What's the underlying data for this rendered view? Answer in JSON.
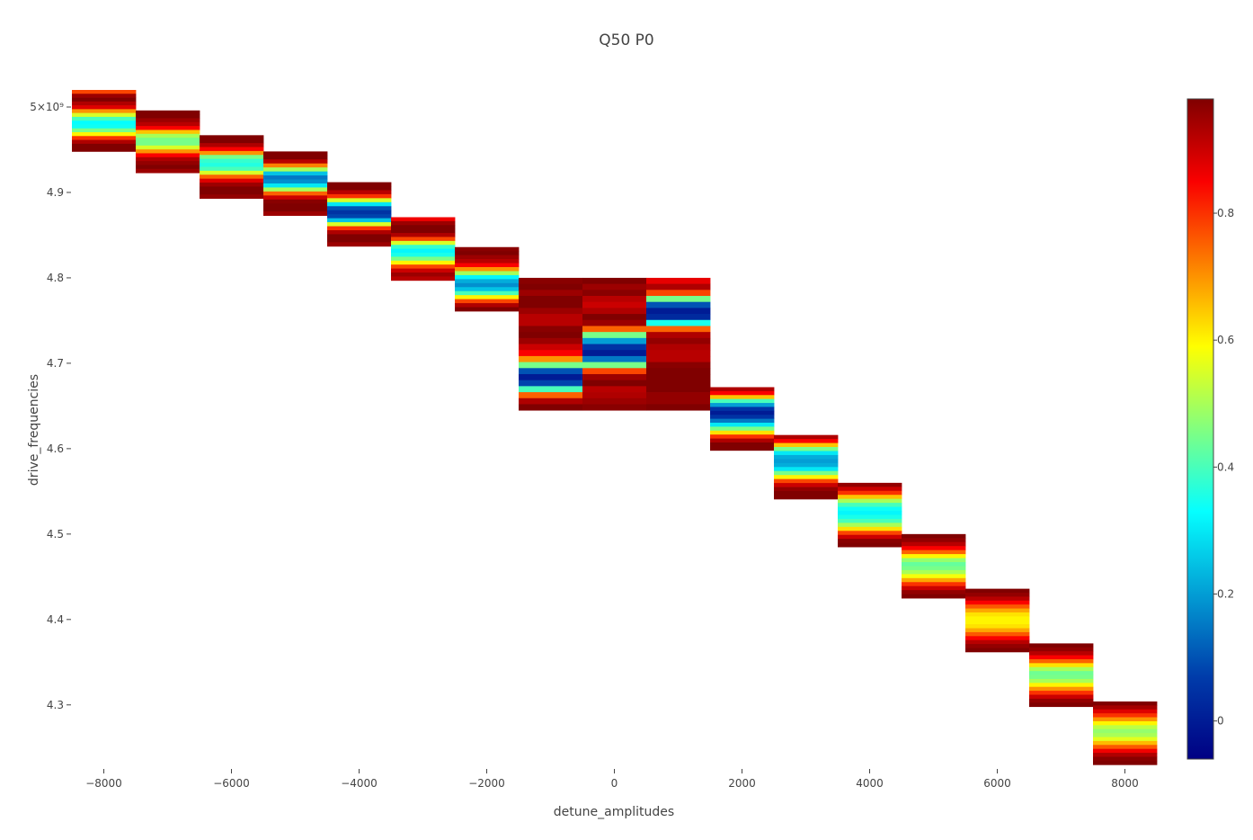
{
  "chart_data": {
    "type": "heatmap",
    "title": "Q50 P0",
    "xlabel": "detune_amplitudes",
    "ylabel": "drive_frequencies",
    "xlim": [
      -8500,
      8500
    ],
    "ylim": [
      4.225,
      5.02
    ],
    "xticks": [
      -8000,
      -6000,
      -4000,
      -2000,
      0,
      2000,
      4000,
      6000,
      8000
    ],
    "xtick_labels": [
      "−8000",
      "−6000",
      "−4000",
      "−2000",
      "0",
      "2000",
      "4000",
      "6000",
      "8000"
    ],
    "yticks": [
      4.3,
      4.4,
      4.5,
      4.6,
      4.7,
      4.8,
      4.9,
      5.0
    ],
    "ytick_labels": [
      "4.3",
      "4.4",
      "4.5",
      "4.6",
      "4.7",
      "4.8",
      "4.9",
      "5×10⁹"
    ],
    "colorscale": "Jet",
    "zlim": [
      -0.06,
      0.98
    ],
    "colorbar_ticks": [
      0,
      0.2,
      0.4,
      0.6,
      0.8
    ],
    "colorbar_tick_labels": [
      "0",
      "0.2",
      "0.4",
      "0.6",
      "0.8"
    ],
    "grid": false,
    "columns": [
      {
        "x": -8000,
        "y_min": 4.948,
        "y_max": 5.02,
        "values": [
          0.78,
          0.95,
          0.98,
          0.93,
          0.88,
          0.7,
          0.55,
          0.4,
          0.33,
          0.34,
          0.45,
          0.6,
          0.8,
          0.93,
          0.98,
          0.98
        ]
      },
      {
        "x": -7000,
        "y_min": 4.923,
        "y_max": 4.996,
        "values": [
          0.98,
          0.98,
          0.95,
          0.92,
          0.85,
          0.65,
          0.5,
          0.45,
          0.45,
          0.55,
          0.7,
          0.85,
          0.93,
          0.96,
          0.98,
          0.95
        ]
      },
      {
        "x": -6000,
        "y_min": 4.893,
        "y_max": 4.967,
        "values": [
          0.98,
          0.98,
          0.93,
          0.85,
          0.7,
          0.45,
          0.38,
          0.36,
          0.4,
          0.55,
          0.75,
          0.88,
          0.95,
          0.98,
          0.98,
          0.96
        ]
      },
      {
        "x": -5000,
        "y_min": 4.873,
        "y_max": 4.948,
        "values": [
          0.98,
          0.98,
          0.92,
          0.72,
          0.5,
          0.25,
          0.15,
          0.18,
          0.3,
          0.5,
          0.75,
          0.9,
          0.97,
          0.98,
          0.98,
          0.95
        ]
      },
      {
        "x": -4000,
        "y_min": 4.837,
        "y_max": 4.912,
        "values": [
          0.98,
          0.98,
          0.92,
          0.8,
          0.55,
          0.3,
          0.1,
          0.05,
          0.08,
          0.25,
          0.55,
          0.8,
          0.93,
          0.98,
          0.98,
          0.95
        ]
      },
      {
        "x": -3000,
        "y_min": 4.797,
        "y_max": 4.871,
        "values": [
          0.86,
          0.95,
          0.98,
          0.98,
          0.93,
          0.78,
          0.55,
          0.38,
          0.32,
          0.35,
          0.45,
          0.6,
          0.78,
          0.9,
          0.95,
          0.92
        ]
      },
      {
        "x": -2000,
        "y_min": 4.761,
        "y_max": 4.836,
        "values": [
          0.97,
          0.98,
          0.95,
          0.92,
          0.85,
          0.7,
          0.5,
          0.32,
          0.22,
          0.18,
          0.25,
          0.4,
          0.6,
          0.78,
          0.93,
          0.98
        ]
      },
      {
        "x": -1000,
        "y_min": 4.645,
        "y_max": 4.8,
        "values": [
          0.97,
          0.98,
          0.95,
          0.98,
          0.98,
          0.95,
          0.92,
          0.92,
          0.97,
          0.98,
          0.95,
          0.9,
          0.85,
          0.7,
          0.45,
          0.1,
          0.0,
          0.08,
          0.4,
          0.75,
          0.93,
          0.98
        ]
      },
      {
        "x": 0,
        "y_min": 4.645,
        "y_max": 4.8,
        "values": [
          0.98,
          0.95,
          0.97,
          0.92,
          0.9,
          0.93,
          0.98,
          0.95,
          0.75,
          0.45,
          0.2,
          0.05,
          0.0,
          0.15,
          0.45,
          0.78,
          0.95,
          0.98,
          0.92,
          0.93,
          0.95,
          0.97
        ]
      },
      {
        "x": 1000,
        "y_min": 4.645,
        "y_max": 4.8,
        "values": [
          0.87,
          0.93,
          0.78,
          0.45,
          0.1,
          0.0,
          0.03,
          0.35,
          0.75,
          0.93,
          0.96,
          0.93,
          0.92,
          0.92,
          0.97,
          0.98,
          0.98,
          0.98,
          0.98,
          0.96,
          0.96,
          0.98
        ]
      },
      {
        "x": 2000,
        "y_min": 4.598,
        "y_max": 4.672,
        "values": [
          0.93,
          0.85,
          0.65,
          0.4,
          0.2,
          0.05,
          0.0,
          0.05,
          0.15,
          0.3,
          0.45,
          0.62,
          0.8,
          0.93,
          0.98,
          0.98
        ]
      },
      {
        "x": 3000,
        "y_min": 4.541,
        "y_max": 4.616,
        "values": [
          0.93,
          0.85,
          0.65,
          0.45,
          0.3,
          0.22,
          0.2,
          0.22,
          0.3,
          0.45,
          0.6,
          0.78,
          0.9,
          0.96,
          0.98,
          0.98
        ]
      },
      {
        "x": 4000,
        "y_min": 4.485,
        "y_max": 4.56,
        "values": [
          0.96,
          0.9,
          0.8,
          0.65,
          0.5,
          0.4,
          0.34,
          0.32,
          0.35,
          0.4,
          0.5,
          0.62,
          0.78,
          0.9,
          0.97,
          0.98
        ]
      },
      {
        "x": 5000,
        "y_min": 4.425,
        "y_max": 4.5,
        "values": [
          0.98,
          0.96,
          0.92,
          0.85,
          0.75,
          0.6,
          0.48,
          0.43,
          0.45,
          0.5,
          0.58,
          0.68,
          0.8,
          0.9,
          0.96,
          0.98
        ]
      },
      {
        "x": 6000,
        "y_min": 4.362,
        "y_max": 4.436,
        "values": [
          0.98,
          0.96,
          0.92,
          0.85,
          0.76,
          0.68,
          0.62,
          0.6,
          0.6,
          0.62,
          0.68,
          0.76,
          0.85,
          0.92,
          0.96,
          0.98
        ]
      },
      {
        "x": 7000,
        "y_min": 4.298,
        "y_max": 4.372,
        "values": [
          0.98,
          0.96,
          0.92,
          0.85,
          0.75,
          0.62,
          0.5,
          0.44,
          0.45,
          0.5,
          0.6,
          0.7,
          0.8,
          0.9,
          0.96,
          0.98
        ]
      },
      {
        "x": 8000,
        "y_min": 4.23,
        "y_max": 4.304,
        "values": [
          0.98,
          0.94,
          0.88,
          0.8,
          0.7,
          0.6,
          0.52,
          0.48,
          0.5,
          0.56,
          0.66,
          0.76,
          0.86,
          0.93,
          0.97,
          0.98
        ]
      }
    ]
  }
}
